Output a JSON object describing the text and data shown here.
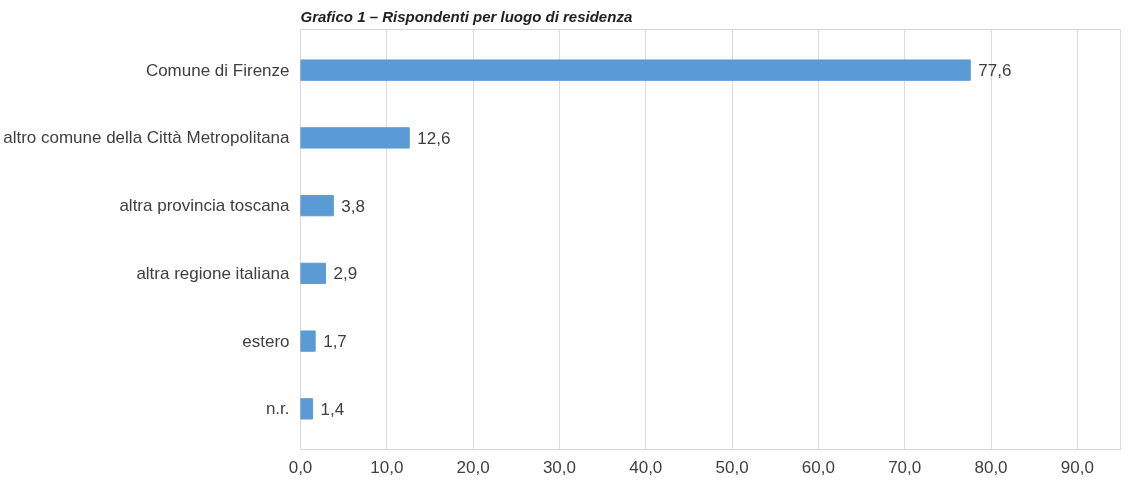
{
  "chart_data": {
    "type": "bar",
    "orientation": "horizontal",
    "title": "Grafico 1 – Rispondenti per luogo di residenza",
    "categories": [
      "Comune di Firenze",
      "altro comune della Città Metropolitana",
      "altra provincia toscana",
      "altra regione italiana",
      "estero",
      "n.r."
    ],
    "values": [
      77.6,
      12.6,
      3.8,
      2.9,
      1.7,
      1.4
    ],
    "value_labels": [
      "77,6",
      "12,6",
      "3,8",
      "2,9",
      "1,7",
      "1,4"
    ],
    "color": "#5b9bd5",
    "xlim": [
      0,
      95
    ],
    "xticks": [
      {
        "value": 0,
        "label": "0,0"
      },
      {
        "value": 10,
        "label": "10,0"
      },
      {
        "value": 20,
        "label": "20,0"
      },
      {
        "value": 30,
        "label": "30,0"
      },
      {
        "value": 40,
        "label": "40,0"
      },
      {
        "value": 50,
        "label": "50,0"
      },
      {
        "value": 60,
        "label": "60,0"
      },
      {
        "value": 70,
        "label": "70,0"
      },
      {
        "value": 80,
        "label": "80,0"
      },
      {
        "value": 90,
        "label": "90,0"
      }
    ],
    "grid": "x"
  }
}
